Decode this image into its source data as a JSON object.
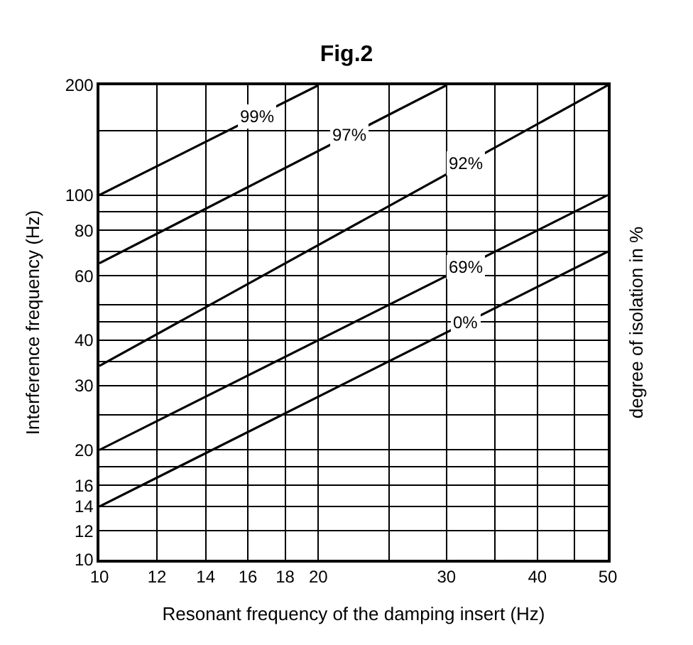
{
  "chart_data": {
    "type": "line",
    "title": "Fig.2",
    "xlabel": "Resonant frequency of the damping insert (Hz)",
    "ylabel": "Interference frequency (Hz)",
    "y2label": "degree of isolation in %",
    "log": "xy",
    "grid": true,
    "legend": false,
    "marker": "none",
    "line_style": "solid",
    "series": [
      {
        "name": "99%",
        "color": "#000000",
        "x": [
          10,
          20
        ],
        "values": [
          100,
          200
        ]
      },
      {
        "name": "97%",
        "color": "#000000",
        "x": [
          10,
          30
        ],
        "values": [
          65,
          200
        ]
      },
      {
        "name": "92%",
        "color": "#000000",
        "x": [
          10,
          50
        ],
        "values": [
          34,
          200
        ]
      },
      {
        "name": "69%",
        "color": "#000000",
        "x": [
          10,
          50
        ],
        "values": [
          20,
          100
        ]
      },
      {
        "name": "0%",
        "color": "#000000",
        "x": [
          10,
          50
        ],
        "values": [
          14,
          70
        ]
      }
    ],
    "xlim": [
      10,
      50
    ],
    "xticks": [
      10,
      12,
      14,
      16,
      18,
      20,
      {
        "value": 25,
        "label": null
      },
      30,
      {
        "value": 35,
        "label": null
      },
      40,
      {
        "value": 45,
        "label": null
      },
      50
    ],
    "ylim": [
      10,
      200
    ],
    "yticks": [
      10,
      12,
      14,
      16,
      {
        "value": 18,
        "label": null
      },
      20,
      {
        "value": 25,
        "label": null
      },
      30,
      {
        "value": 35,
        "label": null
      },
      40,
      {
        "value": 45,
        "label": null
      },
      {
        "value": 50,
        "label": null
      },
      60,
      {
        "value": 70,
        "label": null
      },
      80,
      {
        "value": 90,
        "label": null
      },
      100,
      {
        "value": 150,
        "label": null
      },
      200
    ]
  }
}
